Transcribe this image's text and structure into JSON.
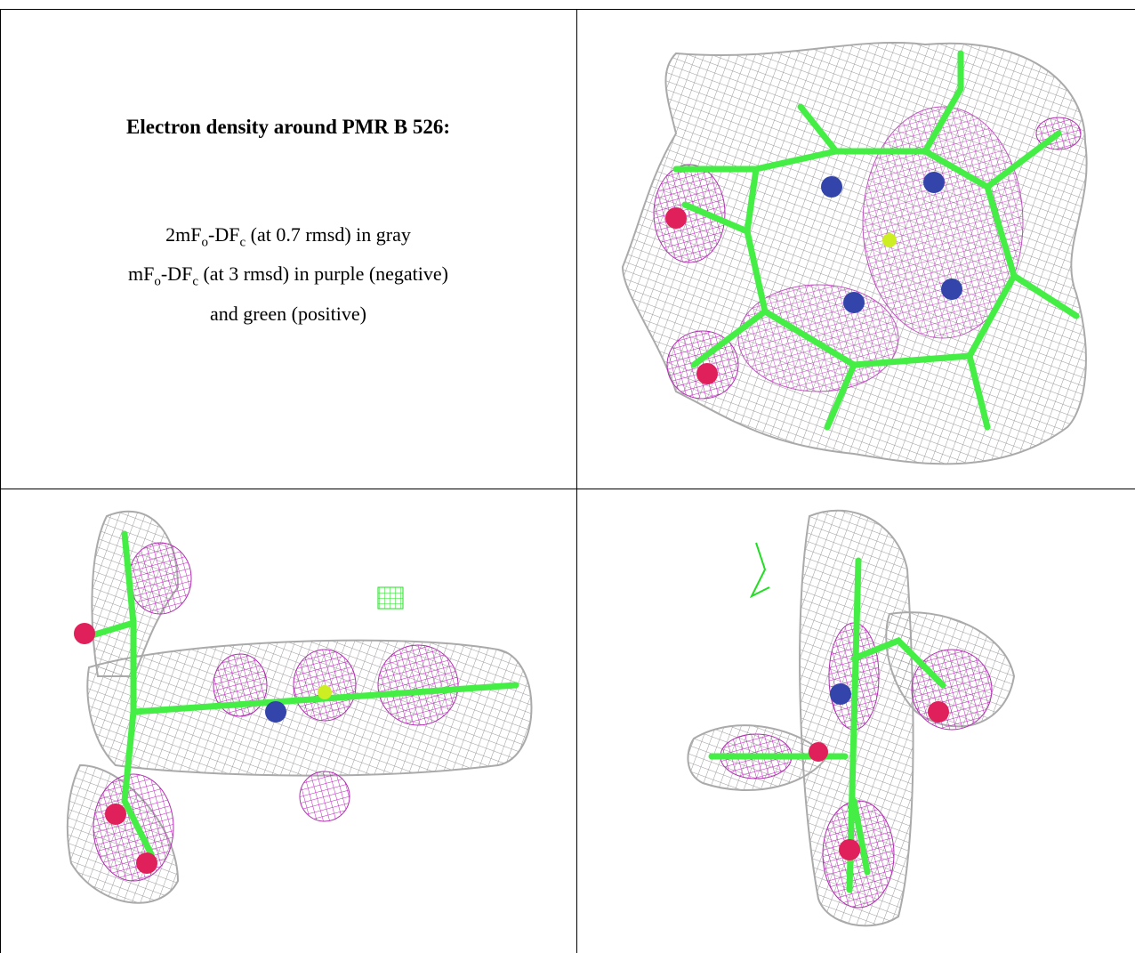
{
  "header": {
    "title": "Electron density around PMR B 526:"
  },
  "legend": {
    "lines": [
      [
        "2mF",
        "o",
        "-DF",
        "c",
        " (at 0.7 rmsd) in gray"
      ],
      [
        "mF",
        "o",
        "-DF",
        "c",
        " (at 3 rmsd) in purple (negative)"
      ],
      [
        "and green (positive)"
      ]
    ]
  }
}
